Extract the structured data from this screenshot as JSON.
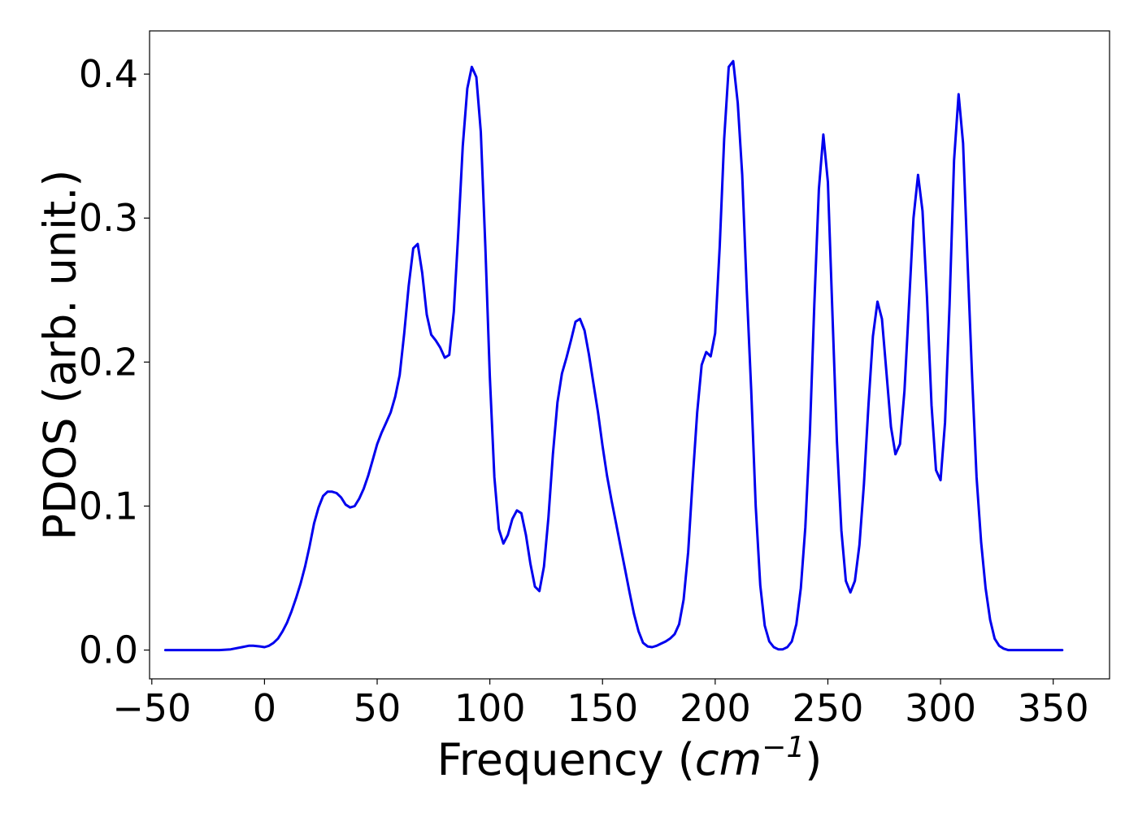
{
  "chart_data": {
    "type": "line",
    "title": "",
    "xlabel": "Frequency",
    "xlabel_unit_base": "cm",
    "xlabel_unit_exponent": "−1",
    "ylabel": "PDOS (arb. unit.)",
    "xlim": [
      -51,
      375
    ],
    "ylim": [
      -0.02,
      0.43
    ],
    "xticks": [
      -50,
      0,
      50,
      100,
      150,
      200,
      250,
      300,
      350
    ],
    "xtick_labels": [
      "−50",
      "0",
      "50",
      "100",
      "150",
      "200",
      "250",
      "300",
      "350"
    ],
    "yticks": [
      0.0,
      0.1,
      0.2,
      0.3,
      0.4
    ],
    "ytick_labels": [
      "0.0",
      "0.1",
      "0.2",
      "0.3",
      "0.4"
    ],
    "grid": false,
    "legend": "none",
    "line_color": "#0000ee",
    "series": [
      {
        "x": [
          -44,
          -30,
          -20,
          -15,
          -10,
          -7,
          -5,
          -2,
          0,
          2,
          4,
          6,
          8,
          10,
          12,
          14,
          16,
          18,
          20,
          22,
          24,
          26,
          28,
          30,
          32,
          34,
          36,
          38,
          40,
          42,
          44,
          46,
          48,
          50,
          52,
          54,
          56,
          58,
          60,
          62,
          64,
          66,
          68,
          70,
          72,
          74,
          76,
          78,
          80,
          82,
          84,
          86,
          88,
          90,
          92,
          94,
          96,
          98,
          100,
          102,
          104,
          106,
          108,
          110,
          112,
          114,
          116,
          118,
          120,
          122,
          124,
          126,
          128,
          130,
          132,
          134,
          136,
          138,
          140,
          142,
          144,
          146,
          148,
          150,
          152,
          154,
          156,
          158,
          160,
          162,
          164,
          166,
          168,
          170,
          172,
          174,
          176,
          178,
          180,
          182,
          184,
          186,
          188,
          190,
          192,
          194,
          196,
          198,
          200,
          202,
          204,
          206,
          208,
          210,
          212,
          214,
          216,
          218,
          220,
          222,
          224,
          226,
          228,
          230,
          232,
          234,
          236,
          238,
          240,
          242,
          244,
          246,
          248,
          250,
          252,
          254,
          256,
          258,
          260,
          262,
          264,
          266,
          268,
          270,
          272,
          274,
          276,
          278,
          280,
          282,
          284,
          286,
          288,
          290,
          292,
          294,
          296,
          298,
          300,
          302,
          304,
          306,
          308,
          310,
          312,
          314,
          316,
          318,
          320,
          322,
          324,
          326,
          328,
          330,
          335,
          340,
          354
        ],
        "y": [
          0.0,
          0.0,
          0.0,
          0.0005,
          0.002,
          0.003,
          0.003,
          0.0025,
          0.002,
          0.003,
          0.005,
          0.008,
          0.013,
          0.019,
          0.027,
          0.036,
          0.046,
          0.058,
          0.072,
          0.088,
          0.099,
          0.107,
          0.11,
          0.11,
          0.109,
          0.106,
          0.101,
          0.099,
          0.1,
          0.105,
          0.112,
          0.121,
          0.132,
          0.143,
          0.151,
          0.158,
          0.165,
          0.176,
          0.191,
          0.22,
          0.253,
          0.279,
          0.282,
          0.262,
          0.233,
          0.219,
          0.215,
          0.21,
          0.203,
          0.205,
          0.235,
          0.29,
          0.35,
          0.39,
          0.405,
          0.398,
          0.36,
          0.28,
          0.19,
          0.12,
          0.084,
          0.074,
          0.08,
          0.091,
          0.097,
          0.095,
          0.08,
          0.06,
          0.044,
          0.041,
          0.058,
          0.092,
          0.136,
          0.172,
          0.192,
          0.203,
          0.215,
          0.228,
          0.23,
          0.222,
          0.205,
          0.185,
          0.165,
          0.142,
          0.121,
          0.104,
          0.088,
          0.072,
          0.056,
          0.04,
          0.025,
          0.013,
          0.005,
          0.0025,
          0.002,
          0.003,
          0.0045,
          0.006,
          0.008,
          0.011,
          0.018,
          0.035,
          0.068,
          0.118,
          0.165,
          0.198,
          0.207,
          0.204,
          0.22,
          0.28,
          0.355,
          0.405,
          0.409,
          0.38,
          0.33,
          0.25,
          0.18,
          0.1,
          0.045,
          0.017,
          0.006,
          0.002,
          0.0005,
          0.0005,
          0.002,
          0.006,
          0.018,
          0.043,
          0.085,
          0.15,
          0.24,
          0.32,
          0.358,
          0.325,
          0.235,
          0.145,
          0.083,
          0.048,
          0.04,
          0.048,
          0.073,
          0.115,
          0.17,
          0.218,
          0.242,
          0.23,
          0.193,
          0.155,
          0.136,
          0.143,
          0.18,
          0.24,
          0.3,
          0.33,
          0.305,
          0.245,
          0.17,
          0.125,
          0.118,
          0.158,
          0.24,
          0.34,
          0.386,
          0.352,
          0.27,
          0.19,
          0.12,
          0.075,
          0.043,
          0.021,
          0.008,
          0.003,
          0.001,
          0.0,
          0.0,
          0.0,
          0.0
        ]
      }
    ]
  }
}
